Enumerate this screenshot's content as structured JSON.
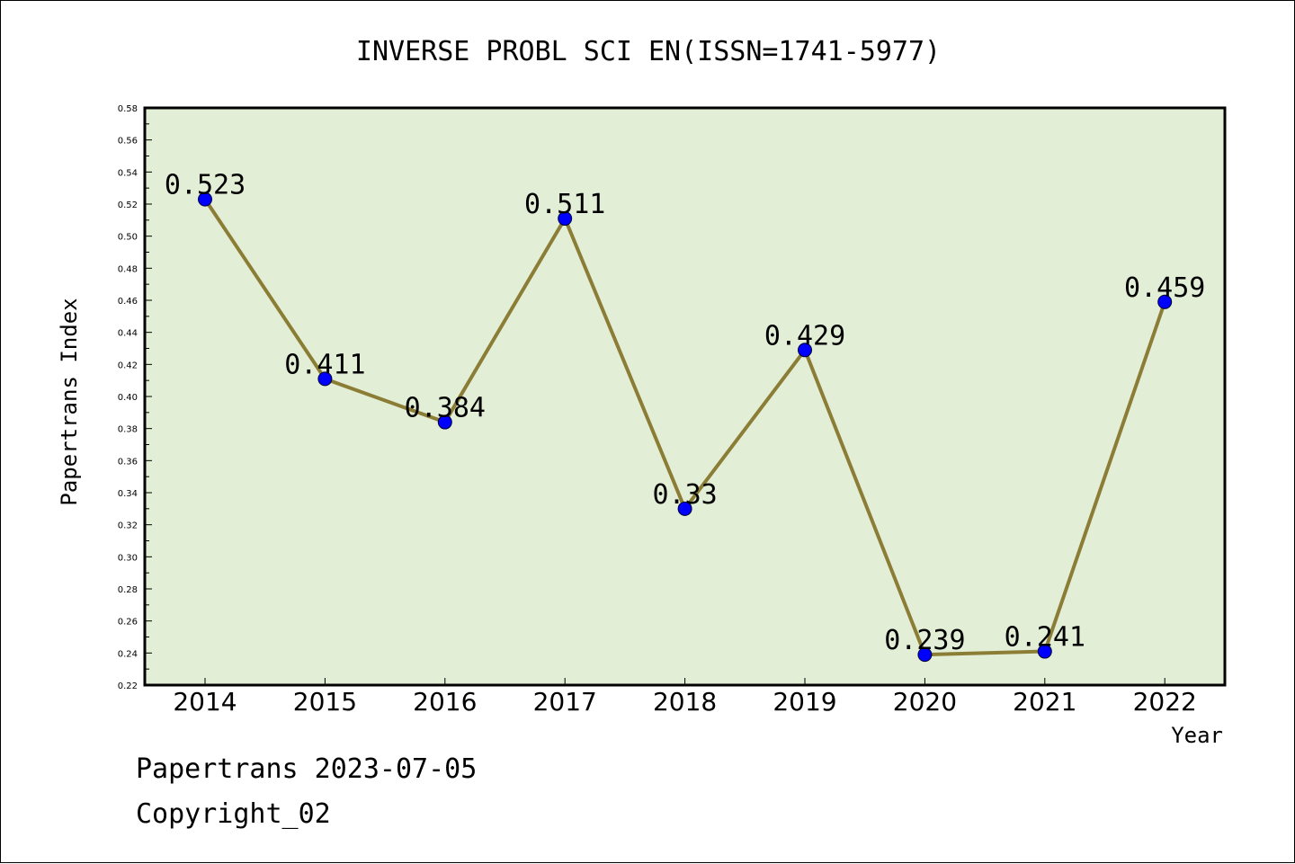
{
  "chart_data": {
    "type": "line",
    "title": "INVERSE PROBL SCI EN(ISSN=1741-5977)",
    "xlabel": "Year",
    "ylabel": "Papertrans Index",
    "categories": [
      "2014",
      "2015",
      "2016",
      "2017",
      "2018",
      "2019",
      "2020",
      "2021",
      "2022"
    ],
    "values": [
      0.523,
      0.411,
      0.384,
      0.511,
      0.33,
      0.429,
      0.239,
      0.241,
      0.459
    ],
    "data_labels": [
      "0.523",
      "0.411",
      "0.384",
      "0.511",
      "0.33",
      "0.429",
      "0.239",
      "0.241",
      "0.459"
    ],
    "ylim": [
      0.22,
      0.58
    ],
    "yticks": [
      "0.22",
      "0.24",
      "0.26",
      "0.28",
      "0.30",
      "0.32",
      "0.34",
      "0.36",
      "0.38",
      "0.40",
      "0.42",
      "0.44",
      "0.46",
      "0.48",
      "0.50",
      "0.52",
      "0.54",
      "0.56",
      "0.58"
    ],
    "grid": false,
    "legend": "none"
  },
  "footer": {
    "line1": "Papertrans 2023-07-05",
    "line2": "Copyright_02"
  },
  "colors": {
    "plot_background": "#e2efd6",
    "line": "#8c7d36",
    "marker": "#0000ff",
    "axis": "#000000"
  }
}
